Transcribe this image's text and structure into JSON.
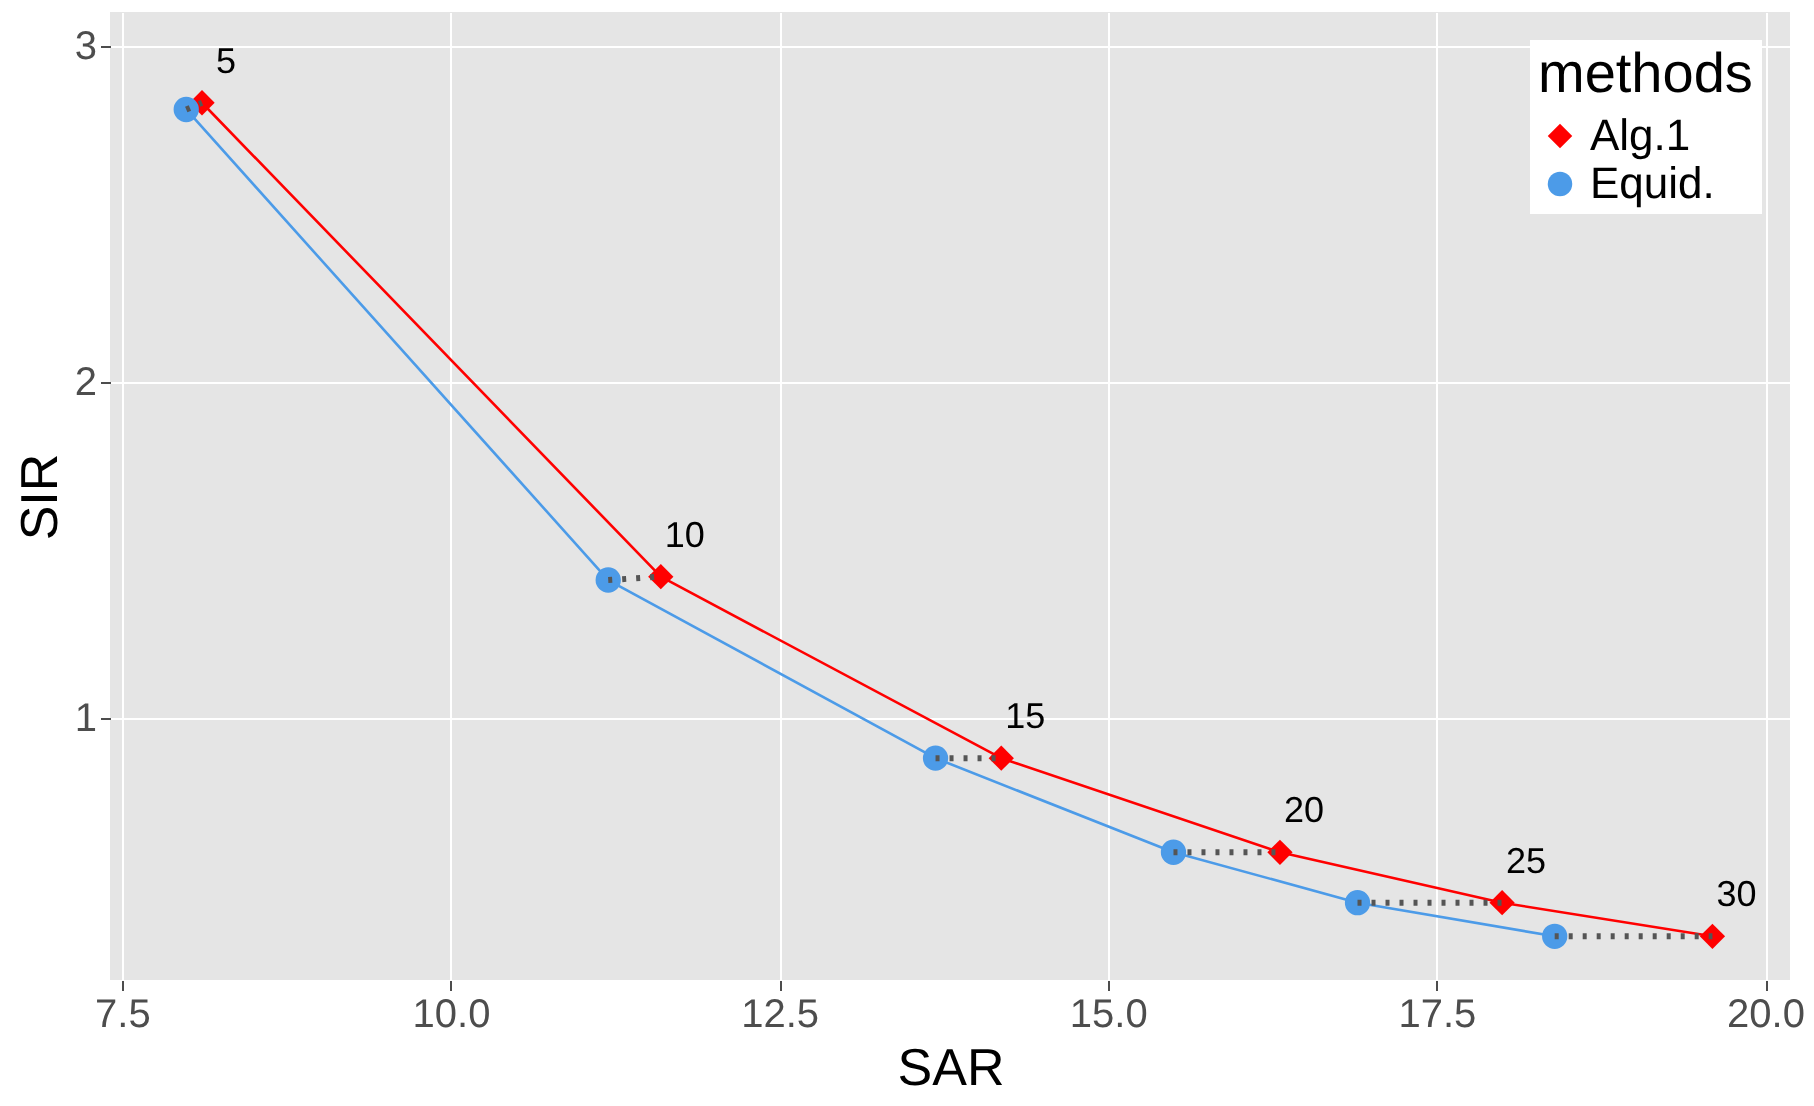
{
  "chart_data": {
    "type": "line",
    "xlabel": "SAR",
    "ylabel": "SIR",
    "legend_title": "methods",
    "xlim": [
      7.41,
      20.19
    ],
    "ylim": [
      0.22,
      3.1
    ],
    "xticks": [
      7.5,
      {
        "value": 10,
        "label": "10.0"
      },
      12.5,
      {
        "value": 15,
        "label": "15.0"
      },
      17.5,
      {
        "value": 20,
        "label": "20.0"
      }
    ],
    "yticks": [
      1,
      2,
      3
    ],
    "grid": true,
    "legend": "top right",
    "series": [
      {
        "name": "Alg.1",
        "color": "#ff0000",
        "marker": "diamond",
        "line_style": "solid",
        "x": [
          8.11,
          11.6,
          14.19,
          16.31,
          18.0,
          19.6
        ],
        "values": [
          2.83,
          1.42,
          0.88,
          0.6,
          0.45,
          0.35
        ]
      },
      {
        "name": "Equid.",
        "color": "#4c9be8",
        "marker": "circle",
        "line_style": "solid",
        "x": [
          7.99,
          11.2,
          13.69,
          15.5,
          16.9,
          18.4
        ],
        "values": [
          2.81,
          1.41,
          0.88,
          0.6,
          0.45,
          0.35
        ]
      },
      {
        "color": "#555555",
        "marker": "none",
        "line_style": "dotted",
        "x": [
          7.99,
          8.11
        ],
        "values": [
          2.81,
          2.83
        ]
      },
      {
        "color": "#555555",
        "marker": "none",
        "line_style": "dotted",
        "x": [
          11.2,
          11.6
        ],
        "values": [
          1.41,
          1.42
        ]
      },
      {
        "color": "#555555",
        "marker": "none",
        "line_style": "dotted",
        "x": [
          13.69,
          14.19
        ],
        "values": [
          0.88,
          0.88
        ]
      },
      {
        "color": "#555555",
        "marker": "none",
        "line_style": "dotted",
        "x": [
          15.5,
          16.31
        ],
        "values": [
          0.6,
          0.6
        ]
      },
      {
        "color": "#555555",
        "marker": "none",
        "line_style": "dotted",
        "x": [
          16.9,
          18.0
        ],
        "values": [
          0.45,
          0.45
        ]
      },
      {
        "color": "#555555",
        "marker": "none",
        "line_style": "dotted",
        "x": [
          18.4,
          19.6
        ],
        "values": [
          0.35,
          0.35
        ]
      }
    ],
    "annotations": [
      {
        "text": "5",
        "x": 8.11,
        "y": 2.83
      },
      {
        "text": "10",
        "x": 11.6,
        "y": 1.42
      },
      {
        "text": "15",
        "x": 14.19,
        "y": 0.88
      },
      {
        "text": "20",
        "x": 16.31,
        "y": 0.6
      },
      {
        "text": "25",
        "x": 18.0,
        "y": 0.45
      },
      {
        "text": "30",
        "x": 19.6,
        "y": 0.35
      }
    ]
  }
}
